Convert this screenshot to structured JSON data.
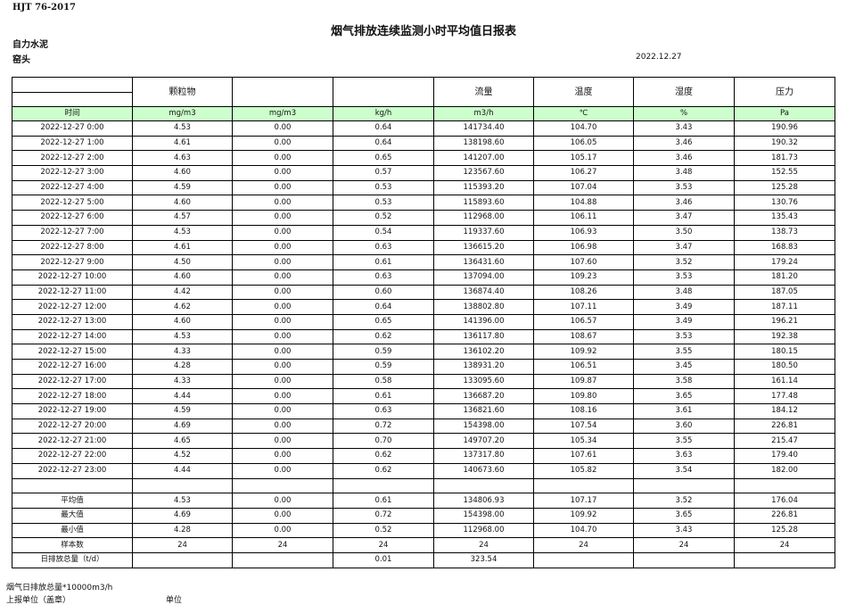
{
  "standard": "HJT  76-2017",
  "title": "烟气排放连续监测小时平均值日报表",
  "company": "自力水泥",
  "site": "窑头",
  "date": "2022.12.27",
  "header": {
    "columns": [
      "",
      "颗粒物",
      "",
      "",
      "流量",
      "温度",
      "湿度",
      "压力"
    ],
    "units": [
      "时间",
      "mg/m3",
      "mg/m3",
      "kg/h",
      "m3/h",
      "℃",
      "%",
      "Pa"
    ],
    "units_bg_color": "#ccffcc"
  },
  "rows": [
    [
      "2022-12-27 0:00",
      "4.53",
      "0.00",
      "0.64",
      "141734.40",
      "104.70",
      "3.43",
      "190.96"
    ],
    [
      "2022-12-27 1:00",
      "4.61",
      "0.00",
      "0.64",
      "138198.60",
      "106.05",
      "3.46",
      "190.32"
    ],
    [
      "2022-12-27 2:00",
      "4.63",
      "0.00",
      "0.65",
      "141207.00",
      "105.17",
      "3.46",
      "181.73"
    ],
    [
      "2022-12-27 3:00",
      "4.60",
      "0.00",
      "0.57",
      "123567.60",
      "106.27",
      "3.48",
      "152.55"
    ],
    [
      "2022-12-27 4:00",
      "4.59",
      "0.00",
      "0.53",
      "115393.20",
      "107.04",
      "3.53",
      "125.28"
    ],
    [
      "2022-12-27 5:00",
      "4.60",
      "0.00",
      "0.53",
      "115893.60",
      "104.88",
      "3.46",
      "130.76"
    ],
    [
      "2022-12-27 6:00",
      "4.57",
      "0.00",
      "0.52",
      "112968.00",
      "106.11",
      "3.47",
      "135.43"
    ],
    [
      "2022-12-27 7:00",
      "4.53",
      "0.00",
      "0.54",
      "119337.60",
      "106.93",
      "3.50",
      "138.73"
    ],
    [
      "2022-12-27 8:00",
      "4.61",
      "0.00",
      "0.63",
      "136615.20",
      "106.98",
      "3.47",
      "168.83"
    ],
    [
      "2022-12-27 9:00",
      "4.50",
      "0.00",
      "0.61",
      "136431.60",
      "107.60",
      "3.52",
      "179.24"
    ],
    [
      "2022-12-27 10:00",
      "4.60",
      "0.00",
      "0.63",
      "137094.00",
      "109.23",
      "3.53",
      "181.20"
    ],
    [
      "2022-12-27 11:00",
      "4.42",
      "0.00",
      "0.60",
      "136874.40",
      "108.26",
      "3.48",
      "187.05"
    ],
    [
      "2022-12-27 12:00",
      "4.62",
      "0.00",
      "0.64",
      "138802.80",
      "107.11",
      "3.49",
      "187.11"
    ],
    [
      "2022-12-27 13:00",
      "4.60",
      "0.00",
      "0.65",
      "141396.00",
      "106.57",
      "3.49",
      "196.21"
    ],
    [
      "2022-12-27 14:00",
      "4.53",
      "0.00",
      "0.62",
      "136117.80",
      "108.67",
      "3.53",
      "192.38"
    ],
    [
      "2022-12-27 15:00",
      "4.33",
      "0.00",
      "0.59",
      "136102.20",
      "109.92",
      "3.55",
      "180.15"
    ],
    [
      "2022-12-27 16:00",
      "4.28",
      "0.00",
      "0.59",
      "138931.20",
      "106.51",
      "3.45",
      "180.50"
    ],
    [
      "2022-12-27 17:00",
      "4.33",
      "0.00",
      "0.58",
      "133095.60",
      "109.87",
      "3.58",
      "161.14"
    ],
    [
      "2022-12-27 18:00",
      "4.44",
      "0.00",
      "0.61",
      "136687.20",
      "109.80",
      "3.65",
      "177.48"
    ],
    [
      "2022-12-27 19:00",
      "4.59",
      "0.00",
      "0.63",
      "136821.60",
      "108.16",
      "3.61",
      "184.12"
    ],
    [
      "2022-12-27 20:00",
      "4.69",
      "0.00",
      "0.72",
      "154398.00",
      "107.54",
      "3.60",
      "226.81"
    ],
    [
      "2022-12-27 21:00",
      "4.65",
      "0.00",
      "0.70",
      "149707.20",
      "105.34",
      "3.55",
      "215.47"
    ],
    [
      "2022-12-27 22:00",
      "4.52",
      "0.00",
      "0.62",
      "137317.80",
      "107.61",
      "3.63",
      "179.40"
    ],
    [
      "2022-12-27 23:00",
      "4.44",
      "0.00",
      "0.62",
      "140673.60",
      "105.82",
      "3.54",
      "182.00"
    ]
  ],
  "summary": [
    [
      "平均值",
      "4.53",
      "0.00",
      "0.61",
      "134806.93",
      "107.17",
      "3.52",
      "176.04"
    ],
    [
      "最大值",
      "4.69",
      "0.00",
      "0.72",
      "154398.00",
      "109.92",
      "3.65",
      "226.81"
    ],
    [
      "最小值",
      "4.28",
      "0.00",
      "0.52",
      "112968.00",
      "104.70",
      "3.43",
      "125.28"
    ],
    [
      "样本数",
      "24",
      "24",
      "24",
      "24",
      "24",
      "24",
      "24"
    ],
    [
      "日排放总量（t/d）",
      "",
      "",
      "0.01",
      "323.54",
      "",
      "",
      ""
    ]
  ],
  "footer": {
    "note": "烟气日排放总量*10000m3/h",
    "reporter_label": "上报单位（盖章）",
    "unit_label": "单位"
  }
}
